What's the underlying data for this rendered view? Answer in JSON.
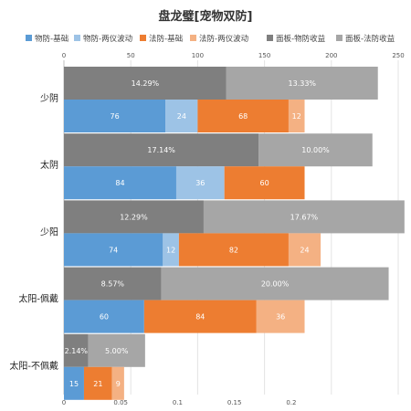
{
  "chart_data": {
    "type": "bar",
    "orientation": "horizontal",
    "title": "盘龙璧[宠物双防]",
    "legend_position": "top",
    "grid": true,
    "top_axis": {
      "ticks": [
        0,
        50,
        100,
        150,
        200,
        250
      ],
      "range": [
        0,
        250
      ]
    },
    "bottom_axis": {
      "ticks": [
        0,
        0.05,
        0.1,
        0.15,
        0.2
      ],
      "tick_labels": [
        "0",
        "0.05",
        "0.1",
        "0.15",
        "0.2"
      ],
      "range": [
        0,
        0.2941
      ]
    },
    "series": [
      {
        "name": "物防-基础",
        "color": "#5b9bd5",
        "axis": "top",
        "group": "stats"
      },
      {
        "name": "物防-两仪波动",
        "color": "#9dc3e6",
        "axis": "top",
        "group": "stats"
      },
      {
        "name": "法防-基础",
        "color": "#ed7d31",
        "axis": "top",
        "group": "stats"
      },
      {
        "name": "法防-两仪波动",
        "color": "#f4b183",
        "axis": "top",
        "group": "stats"
      },
      {
        "name": "面板-物防收益",
        "color": "#7f7f7f",
        "axis": "bottom",
        "group": "gain"
      },
      {
        "name": "面板-法防收益",
        "color": "#a6a6a6",
        "axis": "bottom",
        "group": "gain"
      }
    ],
    "categories": [
      {
        "name": "少阴",
        "stats": [
          76,
          24,
          68,
          12
        ],
        "stat_labels": [
          "76",
          "24",
          "68",
          "12"
        ],
        "gain": [
          0.1429,
          0.1333
        ],
        "gain_labels": [
          "14.29%",
          "13.33%"
        ]
      },
      {
        "name": "太阴",
        "stats": [
          84,
          36,
          60,
          0
        ],
        "stat_labels": [
          "84",
          "36",
          "60",
          ""
        ],
        "gain": [
          0.1714,
          0.1
        ],
        "gain_labels": [
          "17.14%",
          "10.00%"
        ]
      },
      {
        "name": "少阳",
        "stats": [
          74,
          12,
          82,
          24
        ],
        "stat_labels": [
          "74",
          "12",
          "82",
          "24"
        ],
        "gain": [
          0.1229,
          0.1767
        ],
        "gain_labels": [
          "12.29%",
          "17.67%"
        ]
      },
      {
        "name": "太阳-佩戴",
        "stats": [
          60,
          0,
          84,
          36
        ],
        "stat_labels": [
          "60",
          "",
          "84",
          "36"
        ],
        "gain": [
          0.0857,
          0.2
        ],
        "gain_labels": [
          "8.57%",
          "20.00%"
        ]
      },
      {
        "name": "太阳-不佩戴",
        "stats": [
          15,
          0,
          21,
          9
        ],
        "stat_labels": [
          "15",
          "",
          "21",
          "9"
        ],
        "gain": [
          0.0214,
          0.05
        ],
        "gain_labels": [
          "2.14%",
          "5.00%"
        ]
      }
    ]
  }
}
